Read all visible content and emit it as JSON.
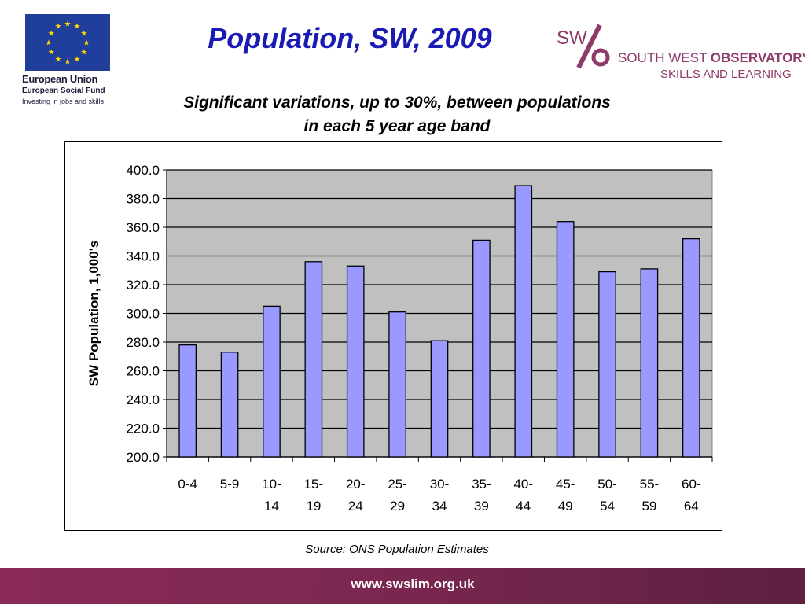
{
  "header": {
    "title": "Population, SW, 2009",
    "subtitle_line1": "Significant variations, up to 30%, between populations",
    "subtitle_line2": "in each 5 year age band"
  },
  "eu_logo": {
    "line1": "European Union",
    "line2": "European Social Fund",
    "line3": "Investing in jobs and skills",
    "flag_color": "#1f3f9a",
    "star_color": "#ffd400"
  },
  "swo_logo": {
    "mark": "SW",
    "text_line1_a": "SOUTH WEST ",
    "text_line1_b": "OBSERVATORY",
    "text_line2": "SKILLS AND LEARNING",
    "brand_color": "#8e3a6b"
  },
  "chart_data": {
    "type": "bar",
    "categories": [
      [
        "0-4"
      ],
      [
        "5-9"
      ],
      [
        "10-",
        "14"
      ],
      [
        "15-",
        "19"
      ],
      [
        "20-",
        "24"
      ],
      [
        "25-",
        "29"
      ],
      [
        "30-",
        "34"
      ],
      [
        "35-",
        "39"
      ],
      [
        "40-",
        "44"
      ],
      [
        "45-",
        "49"
      ],
      [
        "50-",
        "54"
      ],
      [
        "55-",
        "59"
      ],
      [
        "60-",
        "64"
      ]
    ],
    "values": [
      278,
      273,
      305,
      336,
      333,
      301,
      281,
      351,
      389,
      364,
      329,
      331,
      352
    ],
    "ylabel": "SW Population, 1,000's",
    "ylim": [
      200,
      400
    ],
    "yticks": [
      "200.0",
      "220.0",
      "240.0",
      "260.0",
      "280.0",
      "300.0",
      "320.0",
      "340.0",
      "360.0",
      "380.0",
      "400.0"
    ],
    "grid": true,
    "bar_color": "#9999ff",
    "plot_bg": "#c0c0c0"
  },
  "source": "Source: ONS Population Estimates",
  "footer": {
    "url": "www.swslim.org.uk"
  }
}
